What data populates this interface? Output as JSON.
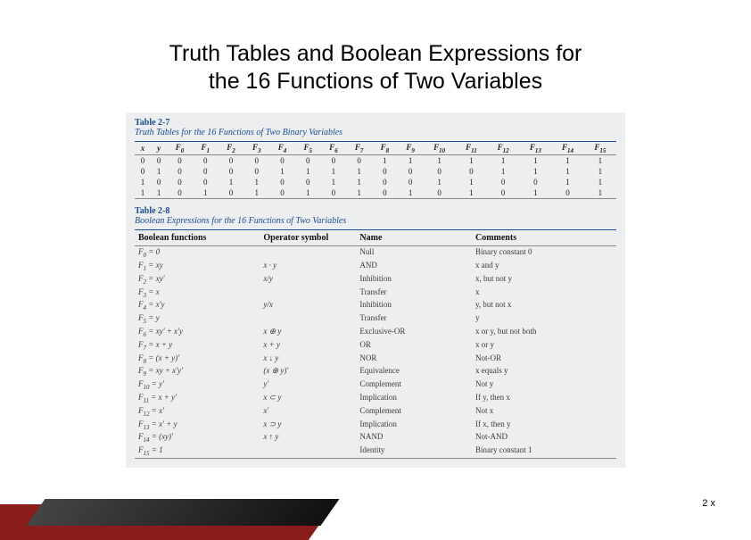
{
  "title_line1": "Truth Tables and Boolean Expressions for",
  "title_line2": "the 16 Functions of Two Variables",
  "page_number": "2 x",
  "table27": {
    "label": "Table 2-7",
    "title": "Truth Tables for the 16 Functions of Two Binary Variables",
    "head_xy": [
      "x",
      "y"
    ],
    "head_f": [
      "F0",
      "F1",
      "F2",
      "F3",
      "F4",
      "F5",
      "F6",
      "F7",
      "F8",
      "F9",
      "F10",
      "F11",
      "F12",
      "F13",
      "F14",
      "F15"
    ],
    "rows": [
      {
        "xy": [
          "0",
          "0"
        ],
        "f": [
          "0",
          "0",
          "0",
          "0",
          "0",
          "0",
          "0",
          "0",
          "1",
          "1",
          "1",
          "1",
          "1",
          "1",
          "1",
          "1"
        ]
      },
      {
        "xy": [
          "0",
          "1"
        ],
        "f": [
          "0",
          "0",
          "0",
          "0",
          "1",
          "1",
          "1",
          "1",
          "0",
          "0",
          "0",
          "0",
          "1",
          "1",
          "1",
          "1"
        ]
      },
      {
        "xy": [
          "1",
          "0"
        ],
        "f": [
          "0",
          "0",
          "1",
          "1",
          "0",
          "0",
          "1",
          "1",
          "0",
          "0",
          "1",
          "1",
          "0",
          "0",
          "1",
          "1"
        ]
      },
      {
        "xy": [
          "1",
          "1"
        ],
        "f": [
          "0",
          "1",
          "0",
          "1",
          "0",
          "1",
          "0",
          "1",
          "0",
          "1",
          "0",
          "1",
          "0",
          "1",
          "0",
          "1"
        ]
      }
    ]
  },
  "table28": {
    "label": "Table 2-8",
    "title": "Boolean Expressions for the 16 Functions of Two Variables",
    "headers": [
      "Boolean functions",
      "Operator symbol",
      "Name",
      "Comments"
    ],
    "rows": [
      [
        "F0 = 0",
        "",
        "Null",
        "Binary constant 0"
      ],
      [
        "F1 = xy",
        "x · y",
        "AND",
        "x and y"
      ],
      [
        "F2 = xy'",
        "x/y",
        "Inhibition",
        "x, but not y"
      ],
      [
        "F3 = x",
        "",
        "Transfer",
        "x"
      ],
      [
        "F4 = x'y",
        "y/x",
        "Inhibition",
        "y, but not x"
      ],
      [
        "F5 = y",
        "",
        "Transfer",
        "y"
      ],
      [
        "F6 = xy' + x'y",
        "x ⊕ y",
        "Exclusive-OR",
        "x or y, but not both"
      ],
      [
        "F7 = x + y",
        "x + y",
        "OR",
        "x or y"
      ],
      [
        "F8 = (x + y)'",
        "x ↓ y",
        "NOR",
        "Not-OR"
      ],
      [
        "F9 = xy + x'y'",
        "(x ⊕ y)'",
        "Equivalence",
        "x equals y"
      ],
      [
        "F10 = y'",
        "y'",
        "Complement",
        "Not y"
      ],
      [
        "F11 = x + y'",
        "x ⊂ y",
        "Implication",
        "If y, then x"
      ],
      [
        "F12 = x'",
        "x'",
        "Complement",
        "Not x"
      ],
      [
        "F13 = x' + y",
        "x ⊃ y",
        "Implication",
        "If x, then y"
      ],
      [
        "F14 = (xy)'",
        "x ↑ y",
        "NAND",
        "Not-AND"
      ],
      [
        "F15 = 1",
        "",
        "Identity",
        "Binary constant 1"
      ]
    ]
  }
}
